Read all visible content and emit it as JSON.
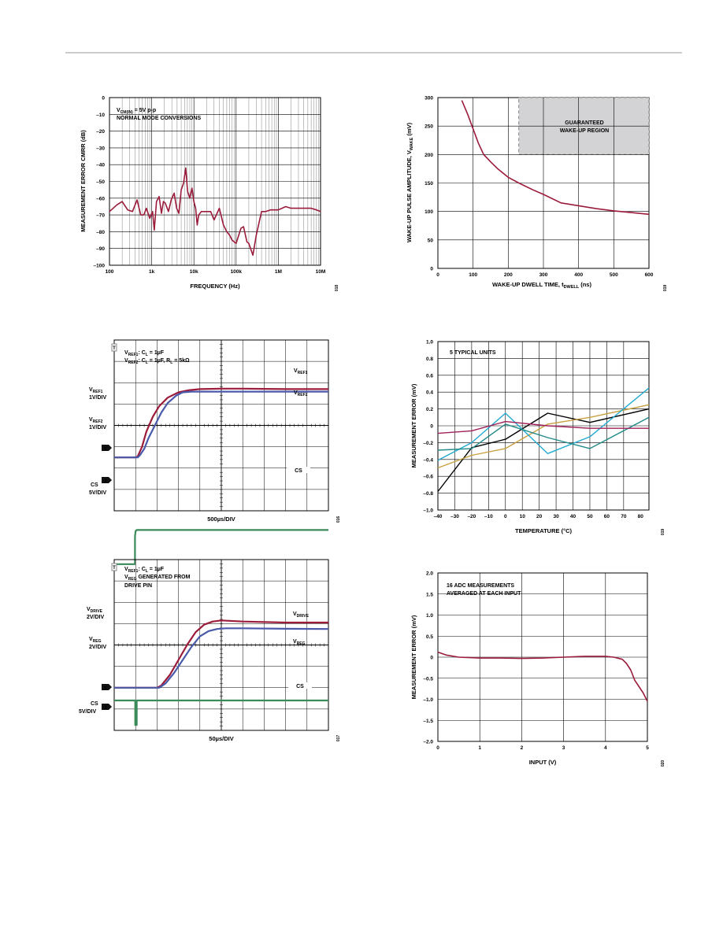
{
  "colors": {
    "maroon": "#9b1b3a",
    "blue": "#4a5aaa",
    "green": "#3a8a5a",
    "black": "#000000",
    "gold": "#c8a040",
    "cyan": "#22aad0",
    "teal": "#208a88",
    "magenta": "#a0205a",
    "grid": "#000000",
    "region": "#d3d3d5"
  },
  "charts": {
    "cmrr": {
      "type": "line",
      "xscale": "log",
      "ylabel": "MEASUREMENT ERROR CMRR (dB)",
      "xlabel": "FREQUENCY (Hz)",
      "xlim": [
        100,
        10000000
      ],
      "ylim": [
        -100,
        0
      ],
      "xticks": [
        100,
        1000,
        10000,
        100000,
        1000000,
        10000000
      ],
      "xtick_labels": [
        "100",
        "1k",
        "10k",
        "100k",
        "1M",
        "10M"
      ],
      "yticks": [
        0,
        -10,
        -20,
        -30,
        -40,
        -50,
        -60,
        -70,
        -80,
        -90,
        -100
      ],
      "ytick_labels": [
        "0",
        "–10",
        "–20",
        "–30",
        "–40",
        "–50",
        "–60",
        "–70",
        "–80",
        "–90",
        "–100"
      ],
      "annotation_line1": "V",
      "annotation_sub": "CM(IN)",
      "annotation_line1_rest": " = 5V p-p",
      "annotation_line2": "NORMAL MODE CONVERSIONS",
      "fig_number": "018",
      "series": [
        {
          "color": "#9b1b3a",
          "x": [
            100,
            150,
            200,
            270,
            350,
            450,
            550,
            650,
            750,
            900,
            1050,
            1150,
            1300,
            1500,
            1700,
            1900,
            2100,
            2500,
            2900,
            3400,
            3900,
            4400,
            5000,
            5700,
            6400,
            7100,
            8000,
            9000,
            10000,
            11000,
            12000,
            13000,
            15000,
            20000,
            25000,
            30000,
            40000,
            50000,
            60000,
            70000,
            80000,
            100000,
            130000,
            150000,
            180000,
            200000,
            250000,
            300000,
            400000,
            500000,
            650000,
            800000,
            1000000,
            1500000,
            2000000,
            3000000,
            4000000,
            6000000,
            8000000,
            10000000
          ],
          "y": [
            -68,
            -64,
            -62,
            -67,
            -68,
            -61,
            -70,
            -70,
            -66,
            -72,
            -68,
            -79,
            -62,
            -59,
            -69,
            -62,
            -63,
            -68,
            -61,
            -57,
            -66,
            -69,
            -55,
            -51,
            -42,
            -56,
            -60,
            -54,
            -62,
            -66,
            -76,
            -70,
            -68,
            -68,
            -68,
            -73,
            -66,
            -76,
            -80,
            -82,
            -85,
            -87,
            -78,
            -77,
            -86,
            -87,
            -94,
            -82,
            -68,
            -68,
            -67,
            -67,
            -67,
            -65,
            -66,
            -66,
            -66,
            -66,
            -67,
            -68
          ]
        }
      ]
    },
    "wakeup": {
      "type": "line",
      "ylabel_main": "WAKE-UP PULSE AMPLITUDE, V",
      "ylabel_sub": "WAKE",
      "ylabel_rest": " (mV)",
      "xlabel_main": "WAKE-UP DWELL TIME, t",
      "xlabel_sub": "DWELL",
      "xlabel_rest": " (ns)",
      "xlim": [
        0,
        600
      ],
      "ylim": [
        0,
        300
      ],
      "xticks": [
        0,
        100,
        200,
        300,
        400,
        500,
        600
      ],
      "yticks": [
        0,
        50,
        100,
        150,
        200,
        250,
        300
      ],
      "region_label_1": "GUARANTEED",
      "region_label_2": "WAKE-UP REGION",
      "region_x": [
        230,
        600
      ],
      "region_y": [
        200,
        300
      ],
      "fig_number": "019",
      "series": [
        {
          "color": "#9b1b3a",
          "x": [
            68,
            85,
            100,
            115,
            130,
            150,
            170,
            200,
            230,
            270,
            300,
            350,
            400,
            450,
            500,
            550,
            600
          ],
          "y": [
            295,
            270,
            245,
            220,
            200,
            187,
            175,
            160,
            150,
            138,
            130,
            115,
            110,
            105,
            101,
            98,
            95
          ]
        }
      ]
    },
    "vref_scope": {
      "type": "line",
      "legend_a_pre": "V",
      "legend_a_sub": "REF1",
      "legend_a_post": ": C",
      "legend_a_sub2": "L",
      "legend_a_end": " = 1µF",
      "legend_b_pre": "V",
      "legend_b_sub": "REF2",
      "legend_b_post": ": C",
      "legend_b_sub2": "L",
      "legend_b_mid": " = 1µF, R",
      "legend_b_sub3": "L",
      "legend_b_end": " = 5kΩ",
      "label_vref1_pre": "V",
      "label_vref1_sub": "REF1",
      "label_vref2_pre": "V",
      "label_vref2_sub": "REF2",
      "left_vref1_pre": "V",
      "left_vref1_sub": "REF1",
      "left_vref1_scale": "1V/DIV",
      "left_vref2_pre": "V",
      "left_vref2_sub": "REF2",
      "left_vref2_scale": "1V/DIV",
      "left_cs": "CS",
      "left_cs_scale": "5V/DIV",
      "cs_label": "CS",
      "xlabel": "500µs/DIV",
      "marker_1": "1",
      "marker_2": "2",
      "marker_t": "T",
      "fig_number": "016",
      "series": [
        {
          "name": "VREF1",
          "color": "#9b1b3a",
          "x": [
            0,
            1.0,
            1.1,
            1.3,
            1.5,
            1.8,
            2.1,
            2.5,
            3.0,
            3.5,
            4.0,
            5.0,
            6.0,
            8.0,
            10.0
          ],
          "y": [
            0,
            0,
            0.05,
            0.5,
            1.2,
            1.9,
            2.4,
            2.8,
            3.05,
            3.15,
            3.2,
            3.22,
            3.22,
            3.2,
            3.2
          ]
        },
        {
          "name": "VREF2",
          "color": "#4a5aaa",
          "x": [
            0,
            1.1,
            1.2,
            1.4,
            1.6,
            1.9,
            2.2,
            2.5,
            2.9,
            3.2,
            3.6,
            4.0,
            5.0,
            6.0,
            8.0,
            10.0
          ],
          "y": [
            0,
            0,
            0.1,
            0.4,
            0.9,
            1.5,
            2.1,
            2.55,
            2.9,
            3.05,
            3.08,
            3.08,
            3.08,
            3.08,
            3.08,
            3.08
          ]
        },
        {
          "name": "CS",
          "color": "#3a8a5a",
          "x": [
            0,
            0.97,
            0.97,
            1.0,
            1.05,
            10.0
          ],
          "y": [
            -5,
            -5,
            -3.7,
            -3.45,
            -3.4,
            -3.4
          ]
        }
      ]
    },
    "temp": {
      "type": "line",
      "ylabel": "MEASUREMENT ERROR (mV)",
      "xlabel": "TEMPERATURE (°C)",
      "xlim": [
        -40,
        85
      ],
      "ylim": [
        -1.0,
        1.0
      ],
      "xticks": [
        -40,
        -30,
        -20,
        -10,
        0,
        10,
        20,
        30,
        40,
        50,
        60,
        70,
        80
      ],
      "xtick_labels": [
        "–40",
        "–30",
        "–20",
        "–10",
        "0",
        "10",
        "20",
        "30",
        "40",
        "50",
        "60",
        "70",
        "80"
      ],
      "yticks": [
        1.0,
        0.8,
        0.6,
        0.4,
        0.2,
        0,
        -0.2,
        -0.4,
        -0.6,
        -0.8,
        -1.0
      ],
      "ytick_labels": [
        "1.0",
        "0.8",
        "0.6",
        "0.4",
        "0.2",
        "0",
        "–0.2",
        "–0.4",
        "–0.6",
        "–0.8",
        "–1.0"
      ],
      "annotation": "5 TYPICAL UNITS",
      "fig_number": "019",
      "series": [
        {
          "color": "#000000",
          "x": [
            -40,
            -20,
            0,
            25,
            50,
            85
          ],
          "y": [
            -0.78,
            -0.26,
            -0.16,
            0.15,
            0.04,
            0.2
          ]
        },
        {
          "color": "#c8a040",
          "x": [
            -40,
            -20,
            0,
            25,
            50,
            85
          ],
          "y": [
            -0.5,
            -0.35,
            -0.27,
            0.02,
            0.1,
            0.25
          ]
        },
        {
          "color": "#22aad0",
          "x": [
            -40,
            -20,
            0,
            25,
            50,
            85
          ],
          "y": [
            -0.41,
            -0.2,
            0.15,
            -0.33,
            -0.13,
            0.45
          ]
        },
        {
          "color": "#208a88",
          "x": [
            -40,
            -20,
            0,
            25,
            50,
            85
          ],
          "y": [
            -0.29,
            -0.27,
            0.02,
            -0.14,
            -0.27,
            0.1
          ]
        },
        {
          "color": "#a0205a",
          "x": [
            -40,
            -20,
            0,
            25,
            50,
            85
          ],
          "y": [
            -0.09,
            -0.06,
            0.05,
            0.0,
            -0.03,
            -0.03
          ]
        }
      ]
    },
    "vdrive_scope": {
      "type": "line",
      "legend_a_pre": "V",
      "legend_a_sub": "REF1",
      "legend_a_post": ": C",
      "legend_a_sub2": "L",
      "legend_a_end": " = 1µF",
      "legend_b_pre": "V",
      "legend_b_sub": "REG",
      "legend_b_end": " GENERATED FROM",
      "legend_c": "DRIVE PIN",
      "label_vdrive_pre": "V",
      "label_vdrive_sub": "DRIVE",
      "label_vreg_pre": "V",
      "label_vreg_sub": "REG",
      "left_vdrive_pre": "V",
      "left_vdrive_sub": "DRIVE",
      "left_vdrive_scale": "2V/DIV",
      "left_vreg_pre": "V",
      "left_vreg_sub": "REG",
      "left_vreg_scale": "2V/DIV",
      "left_cs": "CS",
      "left_cs_scale": "5V/DIV",
      "cs_label": "CS",
      "xlabel": "50µs/DIV",
      "marker_1": "1",
      "marker_2": "2",
      "marker_t": "T",
      "fig_number": "017",
      "series": [
        {
          "name": "VDRIVE",
          "color": "#9b1b3a",
          "x": [
            0,
            2.0,
            2.2,
            2.6,
            3.0,
            3.4,
            3.8,
            4.2,
            4.6,
            5.0,
            6.0,
            8.0,
            10.0
          ],
          "y": [
            0,
            0,
            0.1,
            0.6,
            1.3,
            2.0,
            2.6,
            2.95,
            3.1,
            3.15,
            3.1,
            3.05,
            3.05
          ]
        },
        {
          "name": "VREG",
          "color": "#4a5aaa",
          "x": [
            0,
            2.1,
            2.4,
            2.8,
            3.2,
            3.6,
            4.0,
            4.4,
            4.8,
            5.2,
            6.0,
            8.0,
            10.0
          ],
          "y": [
            0,
            0,
            0.2,
            0.7,
            1.3,
            1.9,
            2.4,
            2.65,
            2.75,
            2.78,
            2.78,
            2.76,
            2.75
          ]
        },
        {
          "name": "CS",
          "color": "#3a8a5a",
          "x": [
            0,
            0.98,
            0.98,
            1.05,
            1.05,
            10.0
          ],
          "y": [
            -0.6,
            -0.6,
            -1.75,
            -1.75,
            -0.6,
            -0.6
          ]
        }
      ]
    },
    "input": {
      "type": "line",
      "ylabel": "MEASUREMENT ERROR (mV)",
      "xlabel": "INPUT (V)",
      "xlim": [
        0,
        5
      ],
      "ylim": [
        -2.0,
        2.0
      ],
      "xticks": [
        0,
        1,
        2,
        3,
        4,
        5
      ],
      "yticks": [
        2.0,
        1.5,
        1.0,
        0.5,
        0,
        -0.5,
        -1.0,
        -1.5,
        -2.0
      ],
      "ytick_labels": [
        "2.0",
        "1.5",
        "1.0",
        "0.5",
        "0",
        "–0.5",
        "–1.0",
        "–1.5",
        "–2.0"
      ],
      "annotation_line1": "16 ADC MEASUREMENTS",
      "annotation_line2": "AVERAGED AT EACH INPUT",
      "fig_number": "020",
      "series": [
        {
          "color": "#9b1b3a",
          "x": [
            0,
            0.2,
            0.5,
            1.0,
            1.5,
            2.0,
            2.5,
            3.0,
            3.5,
            4.0,
            4.2,
            4.4,
            4.5,
            4.6,
            4.7,
            4.8,
            4.9,
            5.0
          ],
          "y": [
            0.12,
            0.05,
            0.0,
            -0.02,
            -0.02,
            -0.03,
            -0.02,
            0.0,
            0.02,
            0.02,
            0.0,
            -0.05,
            -0.15,
            -0.3,
            -0.55,
            -0.7,
            -0.85,
            -1.05
          ]
        }
      ]
    }
  }
}
